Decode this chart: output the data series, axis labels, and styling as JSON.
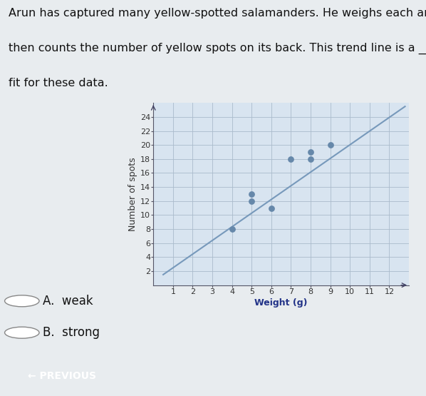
{
  "xlabel": "Weight (g)",
  "ylabel": "Number of spots",
  "xlim": [
    0,
    13
  ],
  "ylim": [
    0,
    26
  ],
  "xticks": [
    1,
    2,
    3,
    4,
    5,
    6,
    7,
    8,
    9,
    10,
    11,
    12
  ],
  "yticks": [
    2,
    4,
    6,
    8,
    10,
    12,
    14,
    16,
    18,
    20,
    22,
    24
  ],
  "scatter_x": [
    4,
    5,
    5,
    6,
    7,
    8,
    8,
    9
  ],
  "scatter_y": [
    8,
    12,
    13,
    11,
    18,
    18,
    19,
    20
  ],
  "trendline_x": [
    0.5,
    12.8
  ],
  "trendline_y": [
    1.5,
    25.5
  ],
  "scatter_color": "#6688aa",
  "trendline_color": "#7799bb",
  "bg_color": "#d8e4f0",
  "grid_color": "#aabbcc",
  "answer_A": "A.  weak",
  "answer_B": "B.  strong",
  "prev_button": "← PREVIOUS",
  "title_line1": "Arun has captured many yellow-spotted salamanders. He weighs each and",
  "title_line2": "then counts the number of yellow spots on its back. This trend line is a ____",
  "title_line3": "fit for these data.",
  "title_fontsize": 11.5,
  "axis_label_fontsize": 9,
  "tick_fontsize": 8,
  "fig_bg": "#e8ecef"
}
